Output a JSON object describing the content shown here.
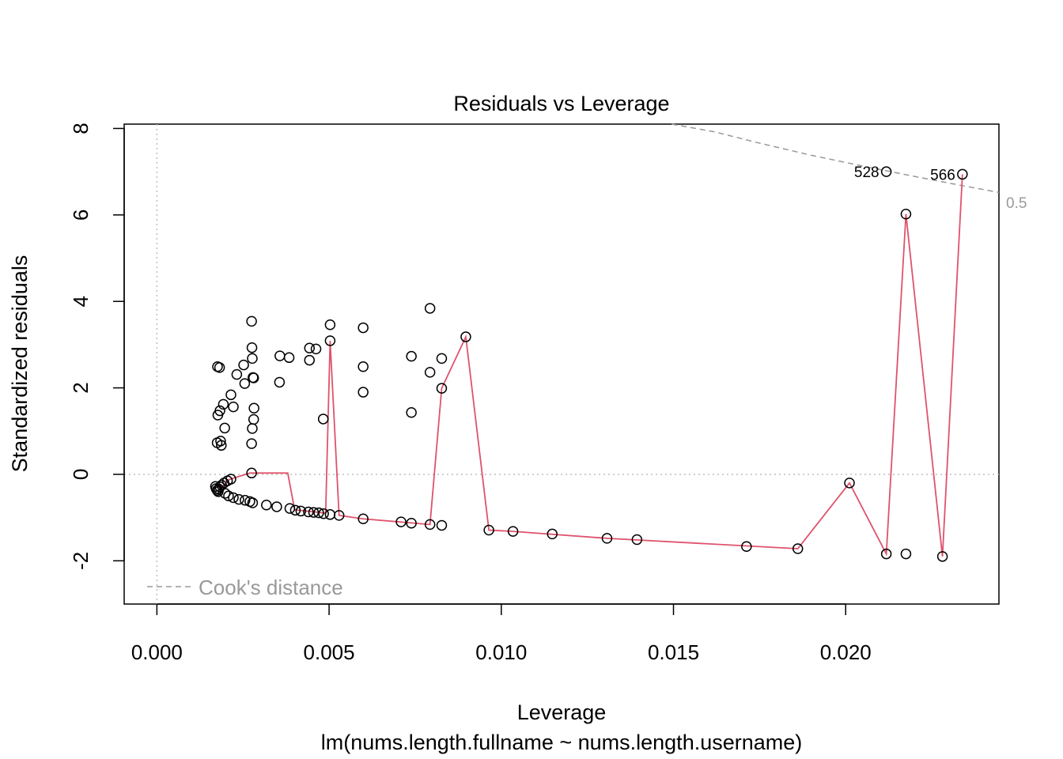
{
  "chart_data": {
    "type": "scatter",
    "title": "Residuals vs Leverage",
    "xlabel": "Leverage",
    "subtitle": "lm(nums.length.fullname ~ nums.length.username)",
    "ylabel": "Standardized residuals",
    "xlim": [
      -0.00095,
      0.02445
    ],
    "ylim": [
      -3.0,
      8.1
    ],
    "x_ticks": [
      "0.000",
      "0.005",
      "0.010",
      "0.015",
      "0.020"
    ],
    "x_tick_values": [
      0.0,
      0.005,
      0.01,
      0.015,
      0.02
    ],
    "y_ticks": [
      "-2",
      "0",
      "2",
      "4",
      "6",
      "8"
    ],
    "y_tick_values": [
      -2,
      0,
      2,
      4,
      6,
      8
    ],
    "reference_lines": {
      "horizontal_zero": true,
      "vertical_zero": true
    },
    "points": [
      [
        0.00176,
        2.49
      ],
      [
        0.00182,
        2.47
      ],
      [
        0.00175,
        0.73
      ],
      [
        0.00185,
        0.77
      ],
      [
        0.00187,
        0.67
      ],
      [
        0.00177,
        1.37
      ],
      [
        0.00183,
        1.47
      ],
      [
        0.00193,
        1.62
      ],
      [
        0.00197,
        1.07
      ],
      [
        0.00215,
        1.84
      ],
      [
        0.00222,
        1.56
      ],
      [
        0.00232,
        2.31
      ],
      [
        0.00252,
        2.53
      ],
      [
        0.00255,
        2.1
      ],
      [
        0.00275,
        3.54
      ],
      [
        0.00276,
        2.93
      ],
      [
        0.00277,
        2.68
      ],
      [
        0.00279,
        2.24
      ],
      [
        0.00281,
        2.23
      ],
      [
        0.00282,
        1.53
      ],
      [
        0.00281,
        1.27
      ],
      [
        0.00277,
        1.06
      ],
      [
        0.00275,
        0.71
      ],
      [
        0.00275,
        0.03
      ],
      [
        0.00357,
        2.74
      ],
      [
        0.00356,
        2.13
      ],
      [
        0.00384,
        2.7
      ],
      [
        0.00443,
        2.92
      ],
      [
        0.00443,
        2.64
      ],
      [
        0.00462,
        2.9
      ],
      [
        0.00483,
        1.28
      ],
      [
        0.00503,
        3.46
      ],
      [
        0.00503,
        3.09
      ],
      [
        0.00599,
        3.39
      ],
      [
        0.00599,
        2.49
      ],
      [
        0.00599,
        1.9
      ],
      [
        0.00739,
        2.73
      ],
      [
        0.00739,
        1.43
      ],
      [
        0.00793,
        3.84
      ],
      [
        0.00793,
        2.36
      ],
      [
        0.00827,
        2.68
      ],
      [
        0.00827,
        1.99
      ],
      [
        0.00897,
        3.18
      ],
      [
        0.0017,
        -0.28
      ],
      [
        0.00172,
        -0.33
      ],
      [
        0.00175,
        -0.37
      ],
      [
        0.00178,
        -0.4
      ],
      [
        0.0018,
        -0.34
      ],
      [
        0.00183,
        -0.29
      ],
      [
        0.00188,
        -0.25
      ],
      [
        0.00195,
        -0.2
      ],
      [
        0.00205,
        -0.15
      ],
      [
        0.00215,
        -0.11
      ],
      [
        0.00198,
        -0.44
      ],
      [
        0.00208,
        -0.5
      ],
      [
        0.00222,
        -0.54
      ],
      [
        0.00238,
        -0.58
      ],
      [
        0.00256,
        -0.6
      ],
      [
        0.0027,
        -0.63
      ],
      [
        0.00278,
        -0.66
      ],
      [
        0.00318,
        -0.71
      ],
      [
        0.00348,
        -0.75
      ],
      [
        0.00386,
        -0.79
      ],
      [
        0.00402,
        -0.83
      ],
      [
        0.00418,
        -0.85
      ],
      [
        0.0044,
        -0.87
      ],
      [
        0.00455,
        -0.88
      ],
      [
        0.0047,
        -0.89
      ],
      [
        0.00484,
        -0.91
      ],
      [
        0.00503,
        -0.93
      ],
      [
        0.00529,
        -0.95
      ],
      [
        0.00599,
        -1.03
      ],
      [
        0.00709,
        -1.1
      ],
      [
        0.00739,
        -1.13
      ],
      [
        0.00793,
        -1.16
      ],
      [
        0.00827,
        -1.18
      ],
      [
        0.00964,
        -1.29
      ],
      [
        0.01034,
        -1.32
      ],
      [
        0.01148,
        -1.38
      ],
      [
        0.01307,
        -1.48
      ],
      [
        0.01394,
        -1.51
      ],
      [
        0.01712,
        -1.67
      ],
      [
        0.01861,
        -1.72
      ],
      [
        0.02011,
        -0.2
      ],
      [
        0.02118,
        -1.84
      ],
      [
        0.02118,
        7.0
      ],
      [
        0.02175,
        -1.84
      ],
      [
        0.02175,
        6.02
      ],
      [
        0.02281,
        -1.9
      ],
      [
        0.02339,
        6.94
      ]
    ],
    "smoother": [
      [
        0.0018,
        -0.38
      ],
      [
        0.0021,
        -0.12
      ],
      [
        0.0027,
        0.03
      ],
      [
        0.0038,
        0.03
      ],
      [
        0.004,
        -0.82
      ],
      [
        0.0047,
        -0.88
      ],
      [
        0.0049,
        -0.9
      ],
      [
        0.00503,
        3.09
      ],
      [
        0.00529,
        -0.95
      ],
      [
        0.00599,
        -1.03
      ],
      [
        0.00793,
        -1.16
      ],
      [
        0.00827,
        1.99
      ],
      [
        0.00897,
        3.18
      ],
      [
        0.00964,
        -1.29
      ],
      [
        0.01034,
        -1.32
      ],
      [
        0.01307,
        -1.48
      ],
      [
        0.01861,
        -1.72
      ],
      [
        0.02011,
        -0.2
      ],
      [
        0.02118,
        -1.84
      ],
      [
        0.02175,
        6.02
      ],
      [
        0.02281,
        -1.9
      ],
      [
        0.02339,
        6.94
      ]
    ],
    "cooks_curve": [
      [
        0.01495,
        8.2
      ],
      [
        0.0162,
        7.92
      ],
      [
        0.0175,
        7.66
      ],
      [
        0.019,
        7.38
      ],
      [
        0.0205,
        7.13
      ],
      [
        0.022,
        6.89
      ],
      [
        0.0235,
        6.66
      ],
      [
        0.02445,
        6.52
      ]
    ],
    "cooks_level_label": "0.5",
    "point_labels": [
      {
        "text": "528",
        "x": 0.02118,
        "y": 7.0
      },
      {
        "text": "566",
        "x": 0.02339,
        "y": 6.94
      }
    ],
    "legend": {
      "label": "Cook's distance",
      "position": "bottom-left"
    },
    "colors": {
      "points": "#000000",
      "smoother": "#DF536B",
      "cooks": "#999999",
      "reference": "#BEBEBE"
    }
  }
}
